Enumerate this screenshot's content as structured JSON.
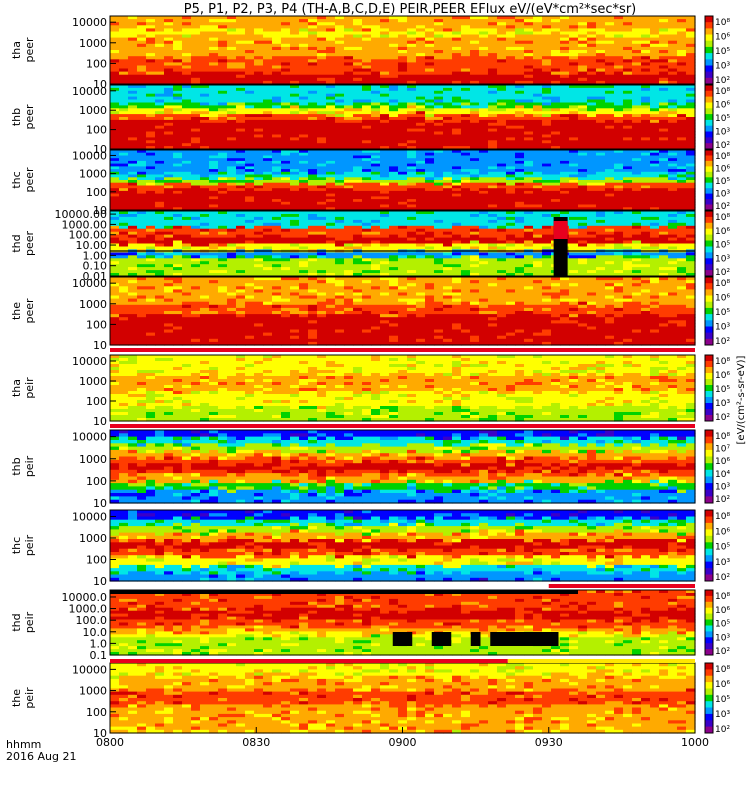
{
  "title": "P5, P1, P2, P3, P4 (TH-A,B,C,D,E) PEIR,PEER EFlux eV/(eV*cm²*sec*sr)",
  "chart_data": {
    "type": "heatmap",
    "title": "P5, P1, P2, P3, P4 (TH-A,B,C,D,E) PEIR,PEER EFlux eV/(eV*cm²*sec*sr)",
    "xlabel": "hhmm",
    "date": "2016 Aug 21",
    "x_ticks": [
      "0800",
      "0830",
      "0900",
      "0930",
      "1000"
    ],
    "x_range_minutes": [
      0,
      120
    ],
    "colorbar_unit": "[eV/(cm²-s-sr-eV)]",
    "colorbar_ticks": [
      "10⁸",
      "10⁷",
      "10⁶",
      "10⁵",
      "10⁴",
      "10³",
      "10²"
    ],
    "panels": [
      {
        "label": "tha",
        "sublabel": "peer",
        "yticks": [
          "10000",
          "1000",
          "100",
          "10"
        ],
        "ylog": [
          1,
          4.3
        ]
      },
      {
        "label": "thb",
        "sublabel": "peer",
        "yticks": [
          "10000",
          "1000",
          "100",
          "10"
        ],
        "ylog": [
          1,
          4.3
        ]
      },
      {
        "label": "thc",
        "sublabel": "peer",
        "yticks": [
          "10000",
          "1000",
          "100",
          "10"
        ],
        "ylog": [
          1,
          4.3
        ]
      },
      {
        "label": "thd",
        "sublabel": "peer",
        "yticks": [
          "10000.00",
          "1000.00",
          "100.00",
          "10.00",
          "1.00",
          "0.10",
          "0.01"
        ],
        "ylog": [
          -2,
          4.3
        ]
      },
      {
        "label": "the",
        "sublabel": "peer",
        "yticks": [
          "10000",
          "1000",
          "100",
          "10"
        ],
        "ylog": [
          1,
          4.3
        ]
      },
      {
        "label": "tha",
        "sublabel": "peir",
        "yticks": [
          "10000",
          "1000",
          "100",
          "10"
        ],
        "ylog": [
          1,
          4.3
        ]
      },
      {
        "label": "thb",
        "sublabel": "peir",
        "yticks": [
          "10000",
          "1000",
          "100",
          "10"
        ],
        "ylog": [
          1,
          4.3
        ]
      },
      {
        "label": "thc",
        "sublabel": "peir",
        "yticks": [
          "10000",
          "1000",
          "100",
          "10"
        ],
        "ylog": [
          1,
          4.3
        ]
      },
      {
        "label": "thd",
        "sublabel": "peir",
        "yticks": [
          "10000.0",
          "1000.0",
          "100.0",
          "10.0",
          "1.0",
          "0.1"
        ],
        "ylog": [
          -1.3,
          4.3
        ]
      },
      {
        "label": "the",
        "sublabel": "peir",
        "yticks": [
          "10000",
          "1000",
          "100",
          "10"
        ],
        "ylog": [
          1,
          4.3
        ]
      }
    ]
  },
  "colors": {
    "jet": [
      "#8b008b",
      "#3b00c8",
      "#0000ff",
      "#0096ff",
      "#00e6e6",
      "#00d200",
      "#b4f000",
      "#ffff00",
      "#ffaa00",
      "#ff3c00",
      "#d20000"
    ],
    "flag_red": "#e8001e",
    "black": "#000000"
  }
}
